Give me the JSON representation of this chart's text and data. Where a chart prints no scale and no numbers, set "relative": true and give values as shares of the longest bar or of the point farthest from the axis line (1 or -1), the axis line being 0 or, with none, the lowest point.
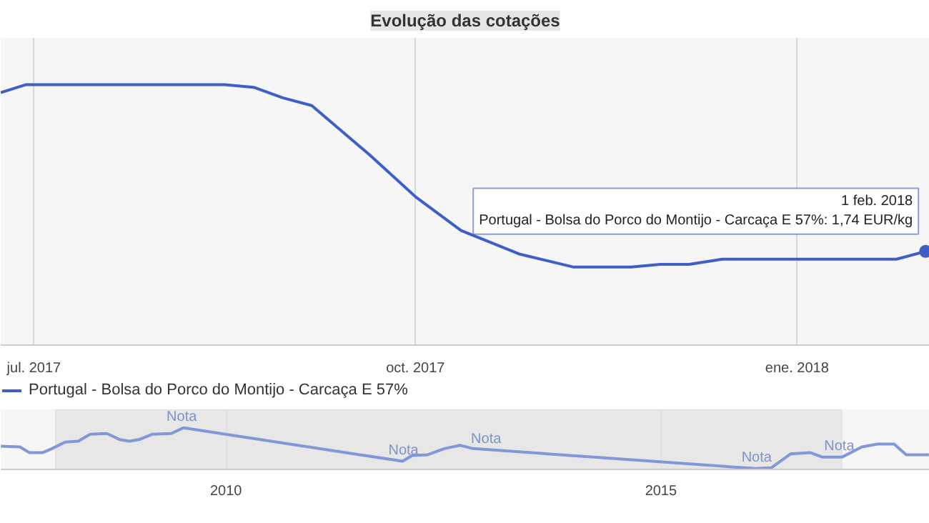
{
  "chart_data": [
    {
      "type": "line",
      "title": "Evolução das cotações",
      "relative": true,
      "grid": "x",
      "legend": "bottom",
      "line_style": "solid",
      "x": [
        "2017-06-23",
        "2017-06-29",
        "2017-08-16",
        "2017-08-23",
        "2017-08-30",
        "2017-09-06",
        "2017-09-20",
        "2017-10-01",
        "2017-10-12",
        "2017-10-26",
        "2017-11-08",
        "2017-11-22",
        "2017-11-29",
        "2017-12-06",
        "2017-12-14",
        "2018-01-01",
        "2018-01-25",
        "2018-02-01"
      ],
      "xlim": [
        "2017-06-23",
        "2018-02-02"
      ],
      "xticks": [
        {
          "value": "2017-07-01",
          "label": "jul. 2017"
        },
        {
          "value": "2017-10-01",
          "label": "oct. 2017"
        },
        {
          "value": "2018-01-01",
          "label": "ene. 2018"
        }
      ],
      "series": [
        {
          "name": "Portugal - Bolsa do Porco do Montijo - Carcaça E 57%",
          "color": "#3f5fc8",
          "values": [
            0.97,
            1,
            1,
            0.99,
            0.95,
            0.92,
            0.73,
            0.57,
            0.44,
            0.35,
            0.3,
            0.3,
            0.31,
            0.31,
            0.33,
            0.33,
            0.33,
            0.36
          ]
        }
      ],
      "annotations": [
        {
          "text": "1 feb. 2018\nPortugal - Bolsa do Porco do Montijo - Carcaça E 57%: 1,74 EUR/kg",
          "x": "2018-02-01",
          "y": 0.36
        }
      ]
    },
    {
      "type": "line",
      "relative": true,
      "grid": "x",
      "legend": false,
      "tick_labels": "x",
      "x": [
        2007.41,
        2007.63,
        2007.74,
        2007.89,
        2008.0,
        2008.15,
        2008.3,
        2008.44,
        2008.63,
        2008.78,
        2008.89,
        2009.0,
        2009.15,
        2009.37,
        2009.51,
        2012.03,
        2012.14,
        2012.32,
        2012.51,
        2012.69,
        2012.84,
        2014.43,
        2016.09,
        2016.27,
        2016.49,
        2016.72,
        2016.86,
        2017.08,
        2017.31,
        2017.49,
        2017.68,
        2017.82,
        2018.08
      ],
      "xlim": [
        2007.41,
        2018.09
      ],
      "xticks": [
        2010,
        2015
      ],
      "series": [
        {
          "color": "#8097d8",
          "values": [
            0.55,
            0.53,
            0.39,
            0.39,
            0.49,
            0.65,
            0.67,
            0.84,
            0.86,
            0.71,
            0.67,
            0.71,
            0.84,
            0.86,
            1,
            0.18,
            0.32,
            0.34,
            0.49,
            0.57,
            0.49,
            0.25,
            0,
            0.02,
            0.36,
            0.39,
            0.28,
            0.28,
            0.53,
            0.6,
            0.6,
            0.34,
            0.34
          ]
        }
      ],
      "bands": [
        {
          "axis": "x",
          "from": 2008.04,
          "to": 2017.08,
          "color": "#e4e4e4"
        }
      ],
      "annotations": [
        {
          "text": "Nota",
          "x": 2009.49,
          "y": 1
        },
        {
          "text": "Nota",
          "x": 2012.04,
          "y": 0.18
        },
        {
          "text": "Nota",
          "x": 2012.99,
          "y": 0.45
        },
        {
          "text": "Nota",
          "x": 2016.1,
          "y": 0
        },
        {
          "text": "Nota",
          "x": 2017.05,
          "y": 0.28
        }
      ]
    }
  ]
}
